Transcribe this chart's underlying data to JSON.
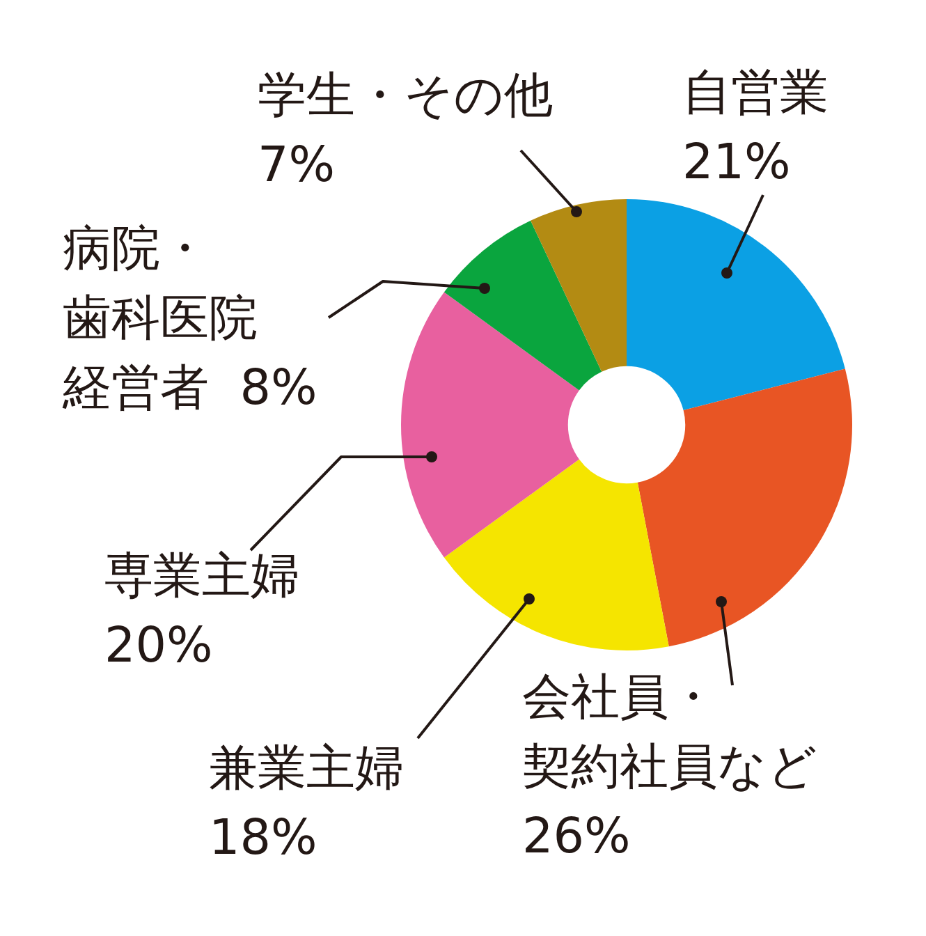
{
  "chart_data": {
    "type": "donut",
    "categories": [
      "自営業",
      "会社員・契約社員など",
      "兼業主婦",
      "専業主婦",
      "病院・歯科医院経営者",
      "学生・その他"
    ],
    "values": [
      21,
      26,
      18,
      20,
      8,
      7
    ],
    "value_labels": [
      "21%",
      "26%",
      "18%",
      "20%",
      "8%",
      "7%"
    ],
    "colors": [
      "#0ba0e4",
      "#e85524",
      "#f5e500",
      "#e8609f",
      "#0aa53e",
      "#b38b13"
    ],
    "legend": false
  }
}
